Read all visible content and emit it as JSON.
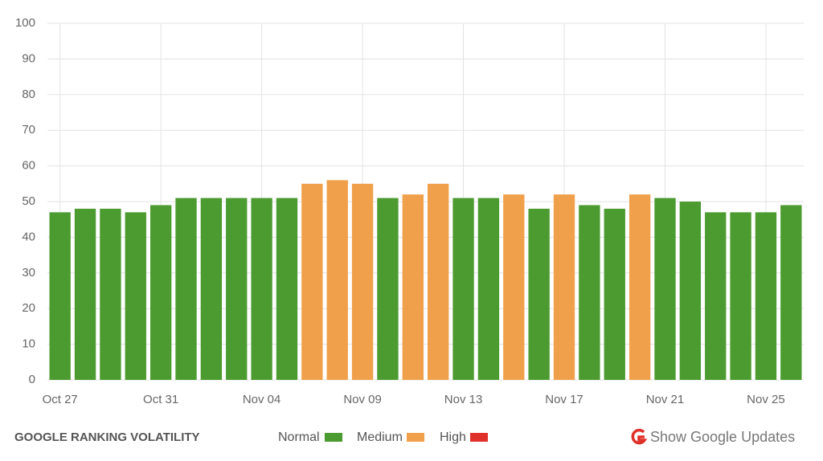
{
  "chart_data": {
    "type": "bar",
    "title": "GOOGLE RANKING VOLATILITY",
    "categories": [
      "Oct 27",
      null,
      null,
      null,
      "Oct 31",
      null,
      null,
      null,
      "Nov 04",
      null,
      null,
      null,
      "Nov 09",
      null,
      null,
      null,
      "Nov 13",
      null,
      null,
      null,
      "Nov 17",
      null,
      null,
      null,
      "Nov 21",
      null,
      null,
      null,
      "Nov 25",
      null
    ],
    "values": [
      47,
      48,
      48,
      47,
      49,
      51,
      51,
      51,
      51,
      51,
      55,
      56,
      55,
      51,
      52,
      55,
      51,
      51,
      52,
      48,
      52,
      49,
      48,
      52,
      51,
      50,
      47,
      47,
      47,
      49
    ],
    "colors": [
      "#4c9b30",
      "#4c9b30",
      "#4c9b30",
      "#4c9b30",
      "#4c9b30",
      "#4c9b30",
      "#4c9b30",
      "#4c9b30",
      "#4c9b30",
      "#4c9b30",
      "#f0a04b",
      "#f0a04b",
      "#f0a04b",
      "#4c9b30",
      "#f0a04b",
      "#f0a04b",
      "#4c9b30",
      "#4c9b30",
      "#f0a04b",
      "#4c9b30",
      "#f0a04b",
      "#4c9b30",
      "#4c9b30",
      "#f0a04b",
      "#4c9b30",
      "#4c9b30",
      "#4c9b30",
      "#4c9b30",
      "#4c9b30",
      "#4c9b30"
    ],
    "legend": [
      {
        "name": "Normal",
        "color": "#4c9b30"
      },
      {
        "name": "Medium",
        "color": "#f0a04b"
      },
      {
        "name": "High",
        "color": "#e0302a"
      }
    ],
    "ylim": [
      0,
      100
    ],
    "yticks": [
      0,
      10,
      20,
      30,
      40,
      50,
      60,
      70,
      80,
      90,
      100
    ],
    "grid": true
  },
  "controls": {
    "updates_button": "Show Google Updates"
  }
}
